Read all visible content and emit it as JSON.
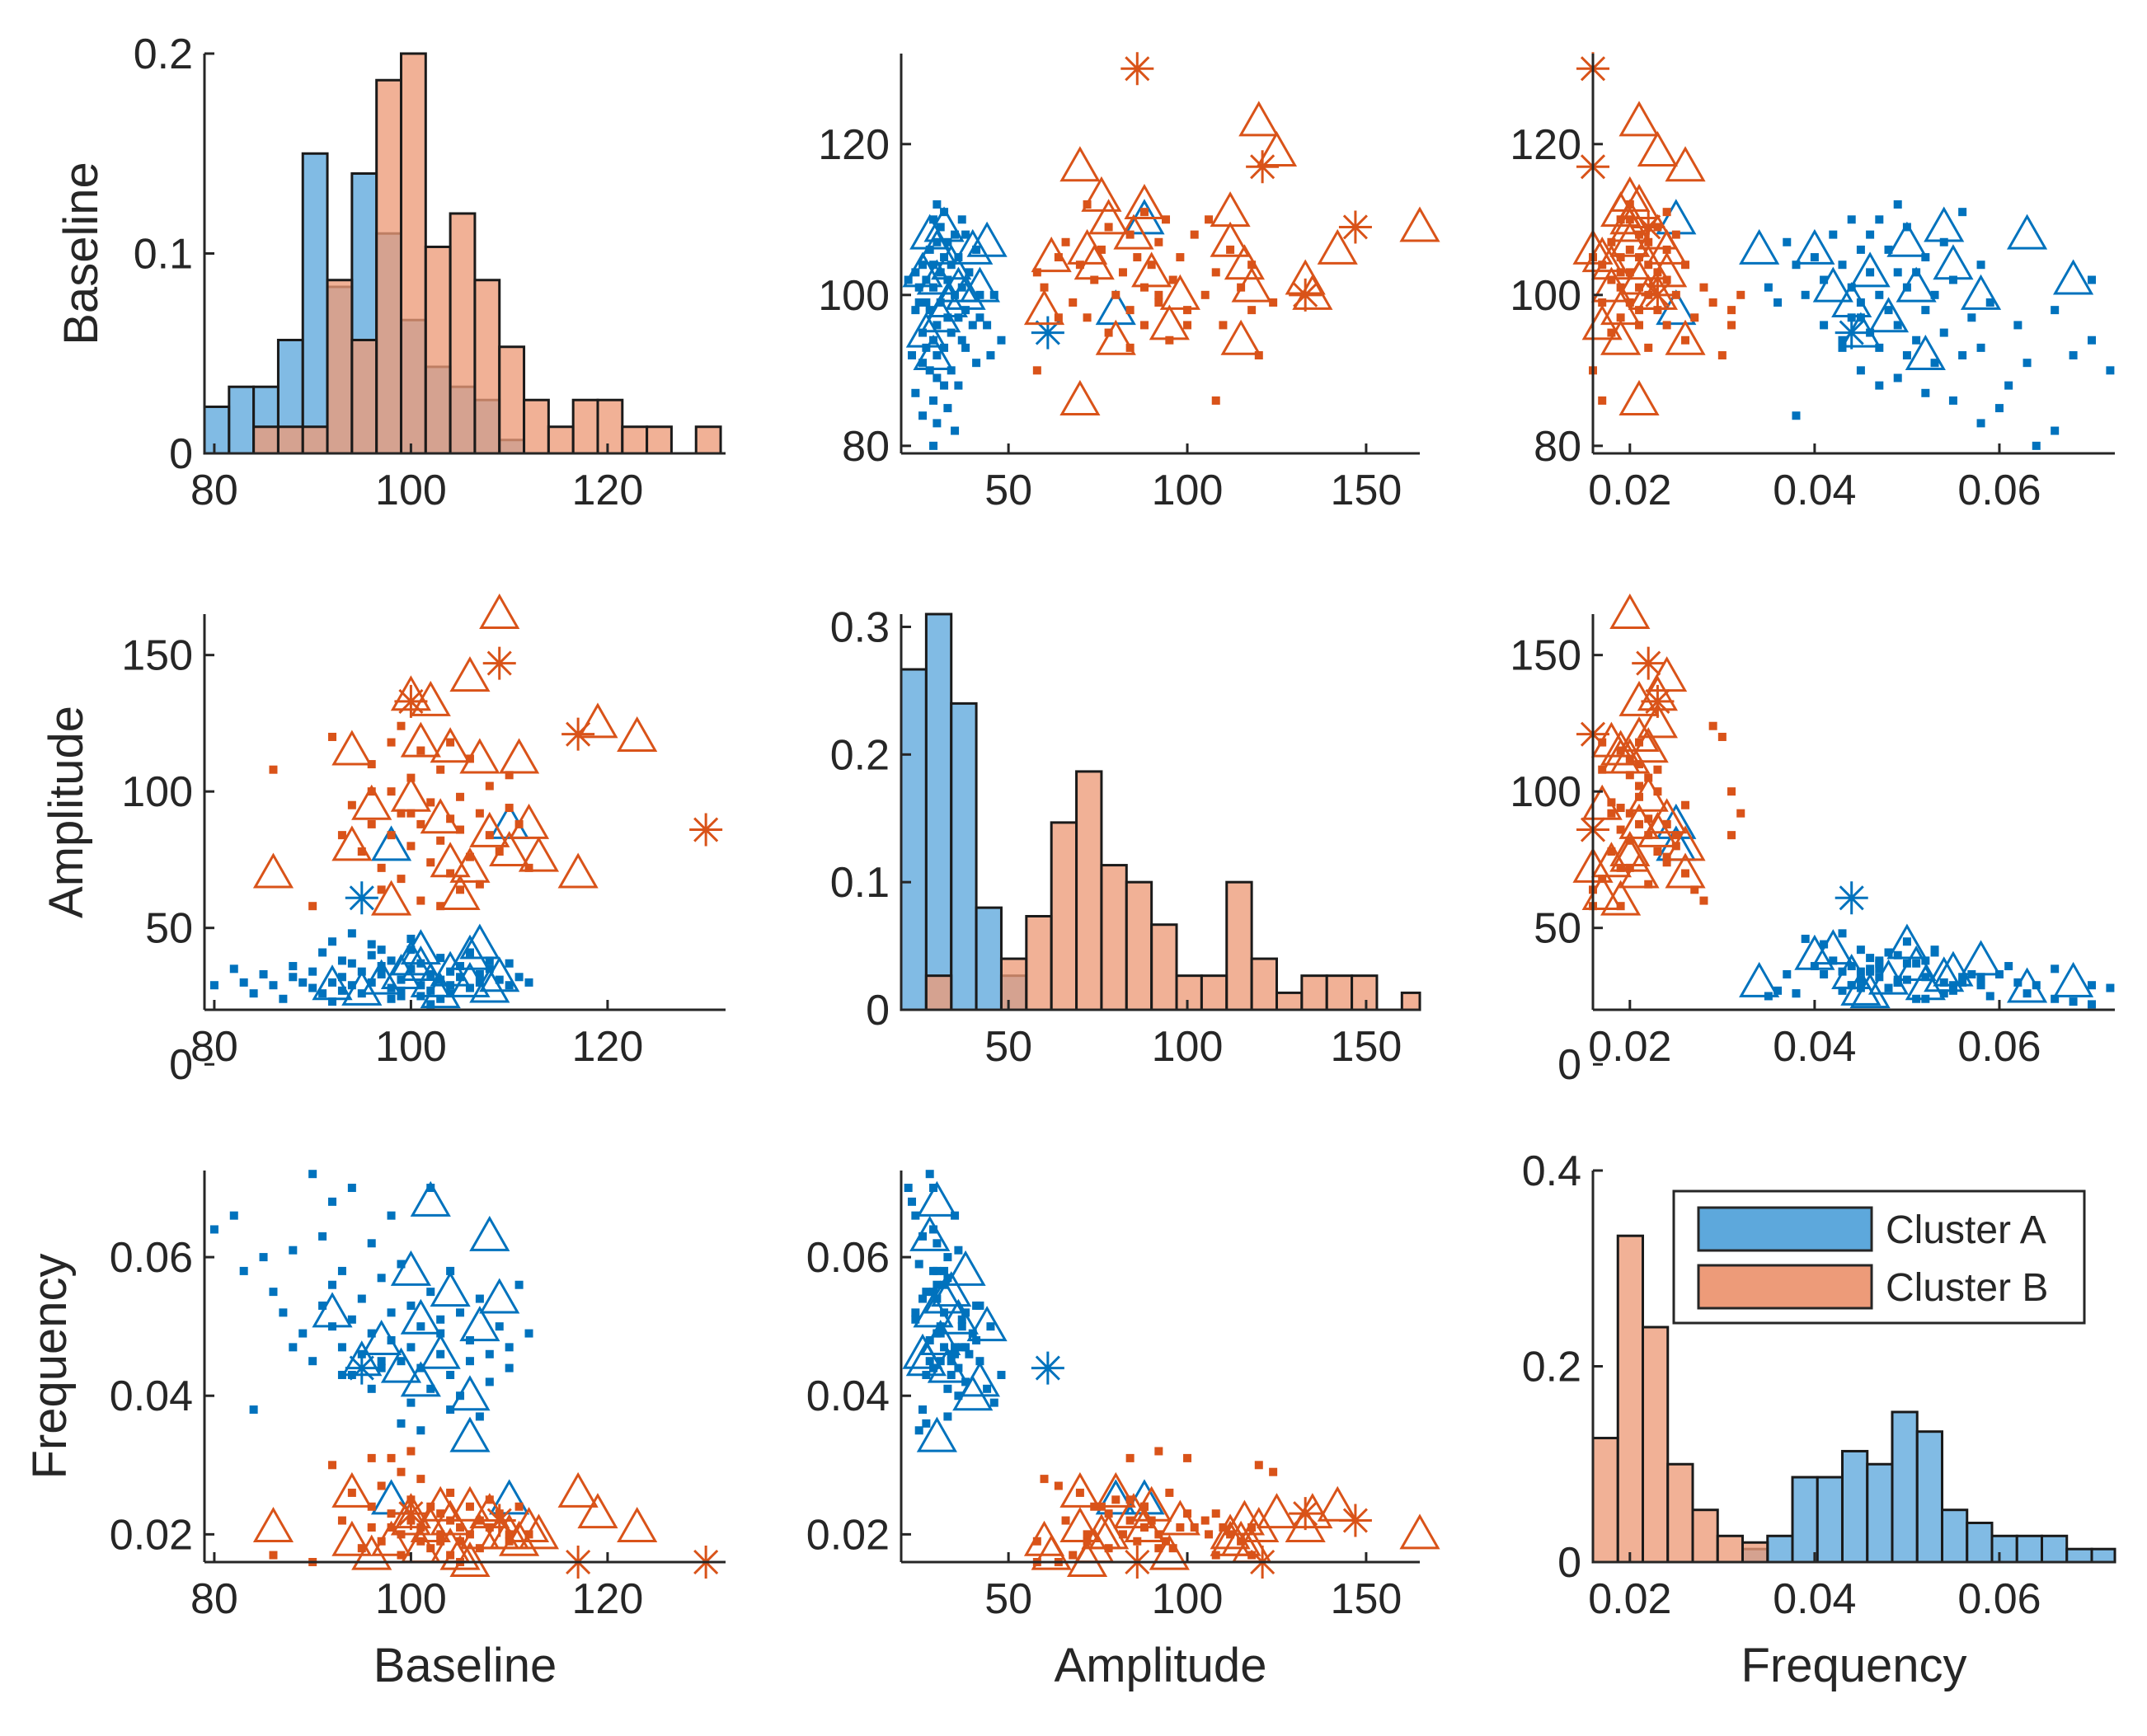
{
  "chart_data": {
    "type": "scatter-matrix",
    "variables": [
      "Baseline",
      "Amplitude",
      "Frequency"
    ],
    "groups": [
      {
        "name": "Cluster A",
        "color": "#0072BD",
        "fill": "#5DA8DC"
      },
      {
        "name": "Cluster B",
        "color": "#D95319",
        "fill": "#ED9B79"
      }
    ],
    "legend": {
      "placement": "top-right of Frequency histogram",
      "entries": [
        "Cluster A",
        "Cluster B"
      ]
    },
    "histograms": {
      "Baseline": {
        "xlim": [
          79,
          132
        ],
        "ylim": [
          0,
          0.2
        ],
        "xticks": [
          "80",
          "100",
          "120"
        ],
        "yticks": [
          "0",
          "0.1",
          "0.2"
        ],
        "bin_edges": [
          79,
          81.5,
          84,
          86.5,
          89,
          91.5,
          94,
          96.5,
          99,
          101.5,
          104,
          106.5,
          109,
          111.5,
          114,
          116.5,
          119,
          121.5,
          124,
          126.5,
          129,
          131.5
        ],
        "Cluster A": [
          0.0233,
          0.0333,
          0.0333,
          0.0567,
          0.15,
          0.0833,
          0.14,
          0.11,
          0.0667,
          0.0433,
          0.0333,
          0.0267,
          0.0067,
          0,
          0,
          0,
          0,
          0,
          0,
          0,
          0
        ],
        "Cluster B": [
          0,
          0,
          0.0133,
          0.0133,
          0.0133,
          0.0867,
          0.0567,
          0.1867,
          0.2,
          0.1033,
          0.12,
          0.0867,
          0.0533,
          0.0267,
          0.0133,
          0.0267,
          0.0267,
          0.0133,
          0.0133,
          0,
          0.0133
        ]
      },
      "Amplitude": {
        "xlim": [
          20,
          165
        ],
        "ylim": [
          0,
          0.31
        ],
        "xticks": [
          "50",
          "100",
          "150"
        ],
        "yticks": [
          "0",
          "0.1",
          "0.2",
          "0.3"
        ],
        "bin_edges": [
          20,
          27,
          34,
          41,
          48,
          55,
          62,
          69,
          76,
          83,
          90,
          97,
          104,
          111,
          118,
          125,
          132,
          139,
          146,
          153,
          160,
          167
        ],
        "Cluster A": [
          0.2667,
          0.31,
          0.24,
          0.08,
          0.0267,
          0,
          0,
          0,
          0,
          0,
          0,
          0,
          0,
          0,
          0,
          0,
          0,
          0,
          0,
          0,
          0
        ],
        "Cluster B": [
          0,
          0.0267,
          0,
          0,
          0.04,
          0.0733,
          0.1467,
          0.1867,
          0.1133,
          0.1,
          0.0667,
          0.0267,
          0.0267,
          0.1,
          0.04,
          0.0133,
          0.0267,
          0.0267,
          0.0267,
          0,
          0.0133
        ]
      },
      "Frequency": {
        "xlim": [
          0.016,
          0.0725
        ],
        "ylim": [
          0,
          0.4
        ],
        "xticks": [
          "0.02",
          "0.04",
          "0.06"
        ],
        "yticks": [
          "0",
          "0.2",
          "0.4"
        ],
        "bin_edges": [
          0.016,
          0.0187,
          0.0214,
          0.0241,
          0.0268,
          0.0295,
          0.0322,
          0.0349,
          0.0376,
          0.0403,
          0.043,
          0.0457,
          0.0484,
          0.0511,
          0.0538,
          0.0565,
          0.0592,
          0.0619,
          0.0646,
          0.0673,
          0.07,
          0.0727
        ],
        "Cluster A": [
          0,
          0,
          0,
          0,
          0,
          0,
          0.0133,
          0.0267,
          0.0867,
          0.0867,
          0.1133,
          0.1,
          0.1533,
          0.1333,
          0.0533,
          0.04,
          0.0267,
          0.0267,
          0.0267,
          0.0133,
          0.0133
        ],
        "Cluster B": [
          0.1267,
          0.3333,
          0.24,
          0.1,
          0.0533,
          0.0267,
          0.02,
          0,
          0,
          0,
          0,
          0,
          0,
          0,
          0,
          0,
          0,
          0,
          0,
          0,
          0
        ]
      }
    },
    "scatter_points": {
      "Cluster A": {
        "dots": [
          [
            80,
            29,
            0.064
          ],
          [
            82,
            35,
            0.066
          ],
          [
            83,
            30,
            0.058
          ],
          [
            84,
            26,
            0.038
          ],
          [
            85,
            33,
            0.06
          ],
          [
            86,
            29,
            0.055
          ],
          [
            87,
            24,
            0.052
          ],
          [
            88,
            36,
            0.061
          ],
          [
            88,
            32,
            0.047
          ],
          [
            89,
            30,
            0.049
          ],
          [
            90,
            28,
            0.072
          ],
          [
            90,
            34,
            0.045
          ],
          [
            91,
            26,
            0.063
          ],
          [
            91,
            41,
            0.053
          ],
          [
            92,
            30,
            0.056
          ],
          [
            92,
            45,
            0.05
          ],
          [
            93,
            27,
            0.043
          ],
          [
            93,
            32,
            0.058
          ],
          [
            94,
            37,
            0.051
          ],
          [
            94,
            29,
            0.07
          ],
          [
            95,
            34,
            0.046
          ],
          [
            95,
            26,
            0.054
          ],
          [
            96,
            40,
            0.049
          ],
          [
            96,
            30,
            0.062
          ],
          [
            97,
            36,
            0.044
          ],
          [
            97,
            33,
            0.057
          ],
          [
            98,
            28,
            0.048
          ],
          [
            98,
            38,
            0.052
          ],
          [
            99,
            31,
            0.045
          ],
          [
            99,
            25,
            0.059
          ],
          [
            100,
            35,
            0.047
          ],
          [
            100,
            42,
            0.053
          ],
          [
            101,
            29,
            0.044
          ],
          [
            101,
            37,
            0.05
          ],
          [
            102,
            33,
            0.041
          ],
          [
            102,
            27,
            0.055
          ],
          [
            103,
            39,
            0.046
          ],
          [
            103,
            31,
            0.049
          ],
          [
            104,
            34,
            0.043
          ],
          [
            104,
            29,
            0.058
          ],
          [
            105,
            36,
            0.04
          ],
          [
            105,
            32,
            0.052
          ],
          [
            106,
            28,
            0.045
          ],
          [
            106,
            41,
            0.048
          ],
          [
            107,
            33,
            0.037
          ],
          [
            107,
            30,
            0.054
          ],
          [
            108,
            35,
            0.046
          ],
          [
            108,
            38,
            0.042
          ],
          [
            109,
            31,
            0.05
          ],
          [
            110,
            37,
            0.047
          ],
          [
            110,
            29,
            0.044
          ],
          [
            111,
            32,
            0.056
          ],
          [
            112,
            30,
            0.049
          ],
          [
            96,
            44,
            0.041
          ],
          [
            100,
            46,
            0.039
          ],
          [
            94,
            48,
            0.043
          ],
          [
            98,
            24,
            0.066
          ],
          [
            102,
            22,
            0.07
          ],
          [
            92,
            23,
            0.068
          ],
          [
            104,
            26,
            0.038
          ],
          [
            99,
            27,
            0.036
          ],
          [
            101,
            25,
            0.035
          ],
          [
            93,
            38,
            0.047
          ],
          [
            97,
            42,
            0.045
          ],
          [
            103,
            24,
            0.051
          ]
        ],
        "triangles": [
          [
            102,
            30,
            0.068
          ],
          [
            108,
            28,
            0.063
          ],
          [
            100,
            38,
            0.058
          ],
          [
            104,
            34,
            0.055
          ],
          [
            109,
            32,
            0.054
          ],
          [
            101,
            36,
            0.051
          ],
          [
            97,
            31,
            0.048
          ],
          [
            103,
            26,
            0.046
          ],
          [
            99,
            33,
            0.044
          ],
          [
            106,
            40,
            0.04
          ],
          [
            106,
            30,
            0.034
          ],
          [
            110,
            88,
            0.025
          ],
          [
            98,
            80,
            0.025
          ],
          [
            92,
            29,
            0.052
          ],
          [
            107,
            44,
            0.05
          ],
          [
            95,
            27,
            0.045
          ],
          [
            101,
            42,
            0.042
          ]
        ],
        "stars": [
          [
            95,
            61,
            0.044
          ]
        ]
      },
      "Cluster B": {
        "dots": [
          [
            86,
            108,
            0.017
          ],
          [
            90,
            58,
            0.016
          ],
          [
            92,
            120,
            0.03
          ],
          [
            93,
            84,
            0.022
          ],
          [
            94,
            95,
            0.026
          ],
          [
            95,
            78,
            0.018
          ],
          [
            96,
            88,
            0.024
          ],
          [
            96,
            110,
            0.021
          ],
          [
            97,
            72,
            0.019
          ],
          [
            98,
            100,
            0.023
          ],
          [
            98,
            84,
            0.031
          ],
          [
            99,
            92,
            0.02
          ],
          [
            99,
            68,
            0.017
          ],
          [
            100,
            105,
            0.022
          ],
          [
            100,
            80,
            0.025
          ],
          [
            101,
            115,
            0.019
          ],
          [
            101,
            88,
            0.021
          ],
          [
            102,
            74,
            0.024
          ],
          [
            102,
            96,
            0.018
          ],
          [
            103,
            82,
            0.02
          ],
          [
            103,
            108,
            0.023
          ],
          [
            104,
            90,
            0.022
          ],
          [
            104,
            70,
            0.026
          ],
          [
            105,
            86,
            0.019
          ],
          [
            105,
            98,
            0.021
          ],
          [
            106,
            76,
            0.024
          ],
          [
            106,
            112,
            0.02
          ],
          [
            107,
            92,
            0.018
          ],
          [
            107,
            66,
            0.022
          ],
          [
            108,
            84,
            0.025
          ],
          [
            108,
            102,
            0.021
          ],
          [
            109,
            78,
            0.023
          ],
          [
            110,
            94,
            0.019
          ],
          [
            111,
            88,
            0.024
          ],
          [
            112,
            72,
            0.02
          ],
          [
            97,
            64,
            0.027
          ],
          [
            101,
            60,
            0.028
          ],
          [
            104,
            118,
            0.017
          ],
          [
            99,
            124,
            0.029
          ],
          [
            103,
            58,
            0.019
          ],
          [
            100,
            92,
            0.032
          ],
          [
            96,
            100,
            0.031
          ],
          [
            105,
            64,
            0.016
          ],
          [
            110,
            106,
            0.02
          ],
          [
            98,
            118,
            0.021
          ]
        ],
        "triangles": [
          [
            109,
            165,
            0.02
          ],
          [
            100,
            135,
            0.023
          ],
          [
            102,
            133,
            0.021
          ],
          [
            106,
            142,
            0.024
          ],
          [
            94,
            115,
            0.019
          ],
          [
            119,
            125,
            0.023
          ],
          [
            123,
            120,
            0.021
          ],
          [
            101,
            118,
            0.018
          ],
          [
            104,
            116,
            0.022
          ],
          [
            107,
            112,
            0.02
          ],
          [
            111,
            112,
            0.019
          ],
          [
            86,
            70,
            0.021
          ],
          [
            94,
            80,
            0.026
          ],
          [
            96,
            95,
            0.017
          ],
          [
            100,
            98,
            0.022
          ],
          [
            103,
            90,
            0.024
          ],
          [
            104,
            74,
            0.018
          ],
          [
            106,
            72,
            0.016
          ],
          [
            108,
            85,
            0.023
          ],
          [
            110,
            78,
            0.02
          ],
          [
            112,
            88,
            0.021
          ],
          [
            117,
            70,
            0.026
          ],
          [
            113,
            76,
            0.02
          ],
          [
            105,
            62,
            0.017
          ],
          [
            98,
            60,
            0.019
          ]
        ],
        "stars": [
          [
            109,
            147,
            0.022
          ],
          [
            130,
            86,
            0.016
          ],
          [
            117,
            121,
            0.016
          ],
          [
            100,
            133,
            0.023
          ]
        ]
      }
    }
  }
}
